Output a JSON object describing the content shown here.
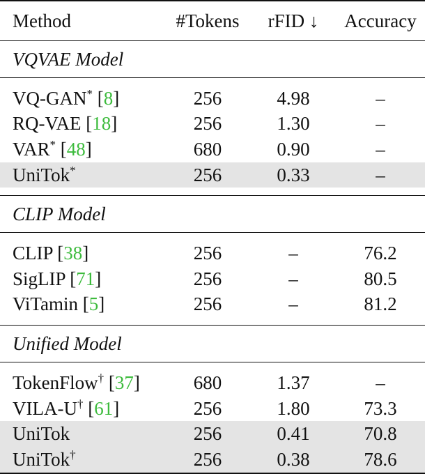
{
  "header": {
    "method": "Method",
    "tokens": "#Tokens",
    "rfid": "rFID ↓",
    "accuracy": "Accuracy"
  },
  "sections": [
    {
      "title": "VQVAE Model",
      "rows": [
        {
          "name": "VQ-GAN",
          "mark": "*",
          "cite": "8",
          "tokens": "256",
          "rfid": "4.98",
          "acc": "–",
          "highlight": false
        },
        {
          "name": "RQ-VAE",
          "mark": "",
          "cite": "18",
          "tokens": "256",
          "rfid": "1.30",
          "acc": "–",
          "highlight": false
        },
        {
          "name": "VAR",
          "mark": "*",
          "cite": "48",
          "tokens": "680",
          "rfid": "0.90",
          "acc": "–",
          "highlight": false
        },
        {
          "name": "UniTok",
          "mark": "*",
          "cite": "",
          "tokens": "256",
          "rfid": "0.33",
          "acc": "–",
          "highlight": true
        }
      ]
    },
    {
      "title": "CLIP Model",
      "rows": [
        {
          "name": "CLIP",
          "mark": "",
          "cite": "38",
          "tokens": "256",
          "rfid": "–",
          "acc": "76.2",
          "highlight": false
        },
        {
          "name": "SigLIP",
          "mark": "",
          "cite": "71",
          "tokens": "256",
          "rfid": "–",
          "acc": "80.5",
          "highlight": false
        },
        {
          "name": "ViTamin",
          "mark": "",
          "cite": "5",
          "tokens": "256",
          "rfid": "–",
          "acc": "81.2",
          "highlight": false
        }
      ]
    },
    {
      "title": "Unified Model",
      "rows": [
        {
          "name": "TokenFlow",
          "mark": "†",
          "cite": "37",
          "tokens": "680",
          "rfid": "1.37",
          "acc": "–",
          "highlight": false
        },
        {
          "name": "VILA-U",
          "mark": "†",
          "cite": "61",
          "tokens": "256",
          "rfid": "1.80",
          "acc": "73.3",
          "highlight": false
        },
        {
          "name": "UniTok",
          "mark": "",
          "cite": "",
          "tokens": "256",
          "rfid": "0.41",
          "acc": "70.8",
          "highlight": true
        },
        {
          "name": "UniTok",
          "mark": "†",
          "cite": "",
          "tokens": "256",
          "rfid": "0.38",
          "acc": "78.6",
          "highlight": true
        }
      ]
    }
  ]
}
